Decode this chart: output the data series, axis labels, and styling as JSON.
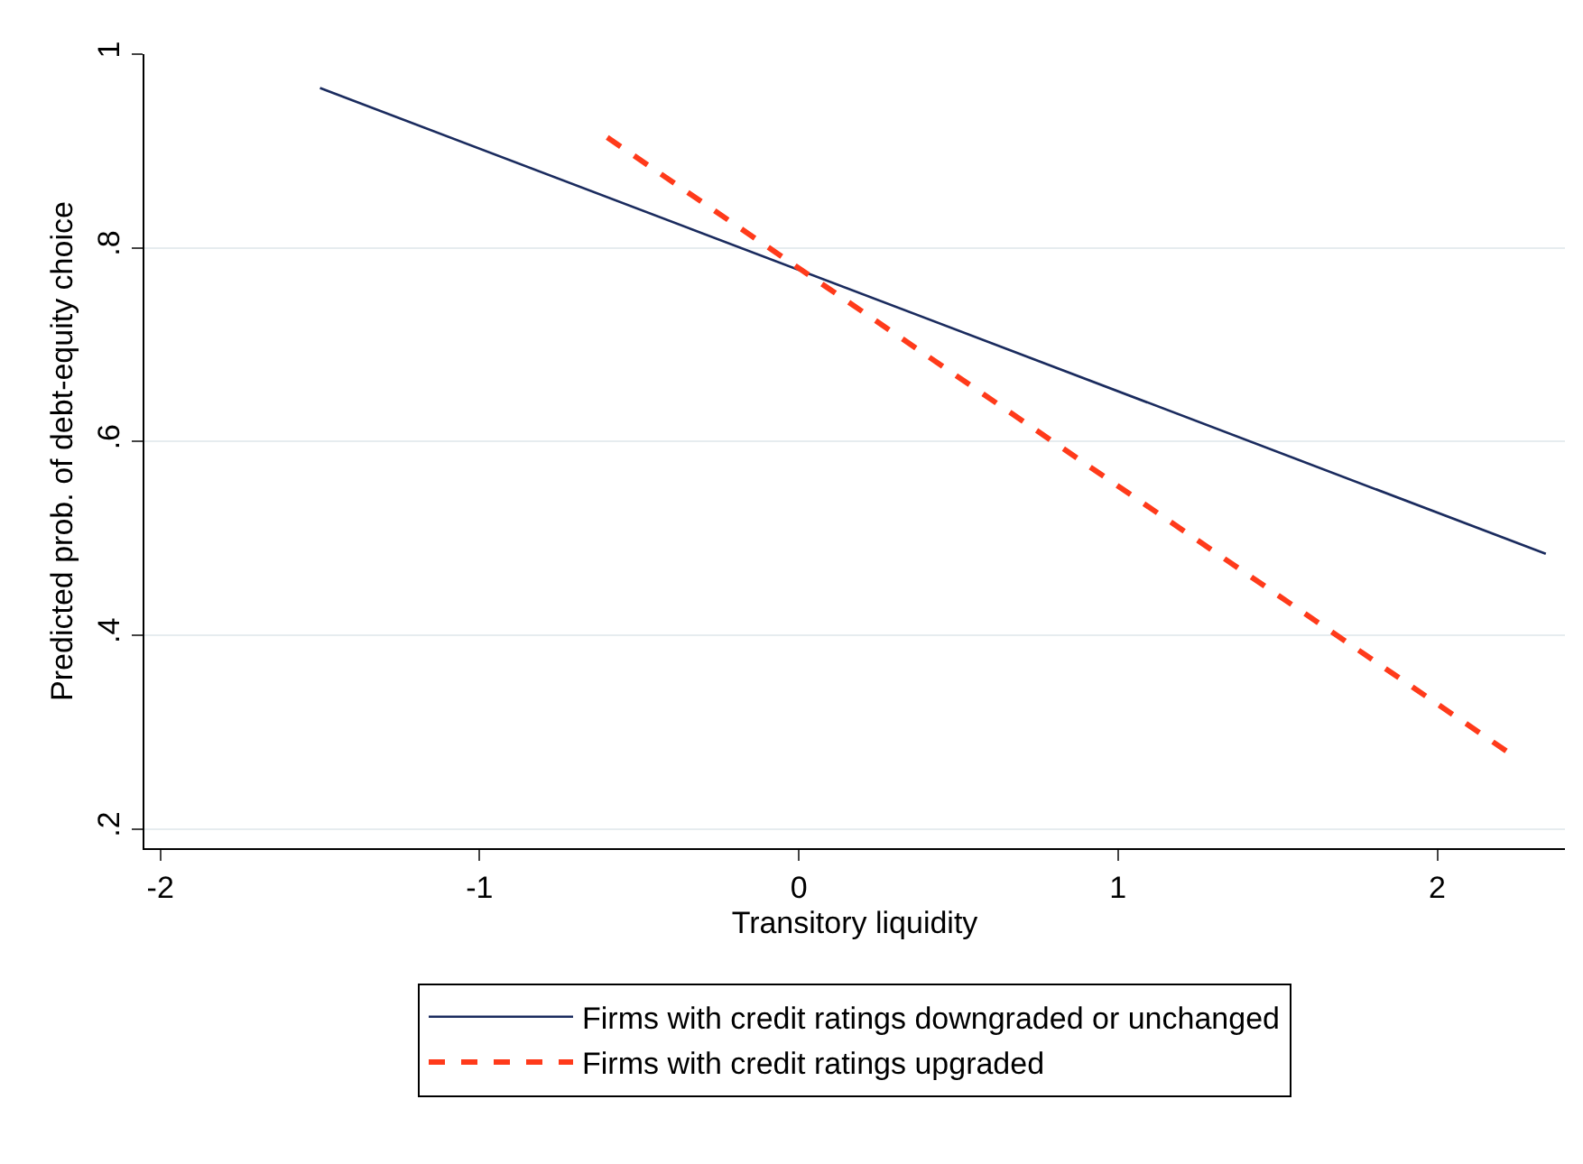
{
  "chart_data": {
    "type": "line",
    "xlabel": "Transitory liquidity",
    "ylabel": "Predicted prob. of debt-equity choice",
    "xlim": [
      -2.05,
      2.4
    ],
    "xticks": [
      -2,
      -1,
      0,
      1,
      2
    ],
    "ylim": [
      0.18,
      1.0
    ],
    "yticks": [
      {
        "value": 0.2,
        "label": ".2"
      },
      {
        "value": 0.4,
        "label": ".4"
      },
      {
        "value": 0.6,
        "label": ".6"
      },
      {
        "value": 0.8,
        "label": ".8"
      },
      {
        "value": 1,
        "label": "1"
      }
    ],
    "grid": "y",
    "legend": "bottom",
    "marker": "none",
    "series": [
      {
        "name": "Firms with credit ratings downgraded or unchanged",
        "color": "#1a2b5e",
        "line_style": "solid",
        "x": [
          -1.5,
          2.34
        ],
        "values": [
          0.965,
          0.484
        ]
      },
      {
        "name": "Firms with credit ratings upgraded",
        "color": "#ff3a1a",
        "line_style": "dashed",
        "x": [
          -0.6,
          2.24
        ],
        "values": [
          0.914,
          0.275
        ]
      }
    ]
  }
}
